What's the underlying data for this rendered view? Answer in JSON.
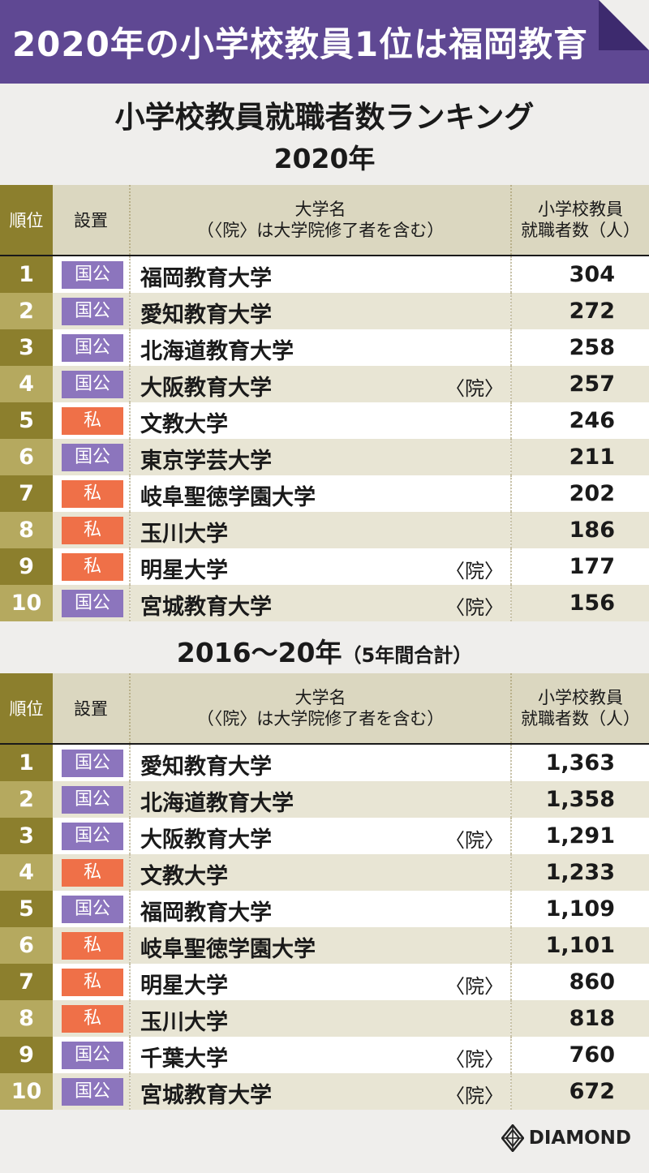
{
  "banner": {
    "title": "2020年の小学校教員1位は福岡教育"
  },
  "main_title": "小学校教員就職者数ランキング",
  "headers": {
    "rank": "順位",
    "type": "設置",
    "univ_line1": "大学名",
    "univ_line2": "（〈院〉は大学院修了者を含む）",
    "count_line1": "小学校教員",
    "count_line2": "就職者数（人）"
  },
  "section1": {
    "title": "2020年",
    "rows": [
      {
        "rank": "1",
        "type": "国公",
        "kind": "pub",
        "name": "福岡教育大学",
        "in": "",
        "count": "304"
      },
      {
        "rank": "2",
        "type": "国公",
        "kind": "pub",
        "name": "愛知教育大学",
        "in": "",
        "count": "272"
      },
      {
        "rank": "3",
        "type": "国公",
        "kind": "pub",
        "name": "北海道教育大学",
        "in": "",
        "count": "258"
      },
      {
        "rank": "4",
        "type": "国公",
        "kind": "pub",
        "name": "大阪教育大学",
        "in": "〈院〉",
        "count": "257"
      },
      {
        "rank": "5",
        "type": "私",
        "kind": "pri",
        "name": "文教大学",
        "in": "",
        "count": "246"
      },
      {
        "rank": "6",
        "type": "国公",
        "kind": "pub",
        "name": "東京学芸大学",
        "in": "",
        "count": "211"
      },
      {
        "rank": "7",
        "type": "私",
        "kind": "pri",
        "name": "岐阜聖徳学園大学",
        "in": "",
        "count": "202"
      },
      {
        "rank": "8",
        "type": "私",
        "kind": "pri",
        "name": "玉川大学",
        "in": "",
        "count": "186"
      },
      {
        "rank": "9",
        "type": "私",
        "kind": "pri",
        "name": "明星大学",
        "in": "〈院〉",
        "count": "177"
      },
      {
        "rank": "10",
        "type": "国公",
        "kind": "pub",
        "name": "宮城教育大学",
        "in": "〈院〉",
        "count": "156"
      }
    ]
  },
  "section2": {
    "title": "2016〜20年",
    "subtitle": "（5年間合計）",
    "rows": [
      {
        "rank": "1",
        "type": "国公",
        "kind": "pub",
        "name": "愛知教育大学",
        "in": "",
        "count": "1,363"
      },
      {
        "rank": "2",
        "type": "国公",
        "kind": "pub",
        "name": "北海道教育大学",
        "in": "",
        "count": "1,358"
      },
      {
        "rank": "3",
        "type": "国公",
        "kind": "pub",
        "name": "大阪教育大学",
        "in": "〈院〉",
        "count": "1,291"
      },
      {
        "rank": "4",
        "type": "私",
        "kind": "pri",
        "name": "文教大学",
        "in": "",
        "count": "1,233"
      },
      {
        "rank": "5",
        "type": "国公",
        "kind": "pub",
        "name": "福岡教育大学",
        "in": "",
        "count": "1,109"
      },
      {
        "rank": "6",
        "type": "私",
        "kind": "pri",
        "name": "岐阜聖徳学園大学",
        "in": "",
        "count": "1,101"
      },
      {
        "rank": "7",
        "type": "私",
        "kind": "pri",
        "name": "明星大学",
        "in": "〈院〉",
        "count": "860"
      },
      {
        "rank": "8",
        "type": "私",
        "kind": "pri",
        "name": "玉川大学",
        "in": "",
        "count": "818"
      },
      {
        "rank": "9",
        "type": "国公",
        "kind": "pub",
        "name": "千葉大学",
        "in": "〈院〉",
        "count": "760"
      },
      {
        "rank": "10",
        "type": "国公",
        "kind": "pub",
        "name": "宮城教育大学",
        "in": "〈院〉",
        "count": "672"
      }
    ]
  },
  "colors": {
    "purple": "#5f4893",
    "public_badge": "#8c75bd",
    "private_badge": "#ef7048",
    "olive": "#8c7f2d"
  },
  "logo": {
    "text": "DIAMOND",
    "icon": "diamond-logo-icon"
  }
}
